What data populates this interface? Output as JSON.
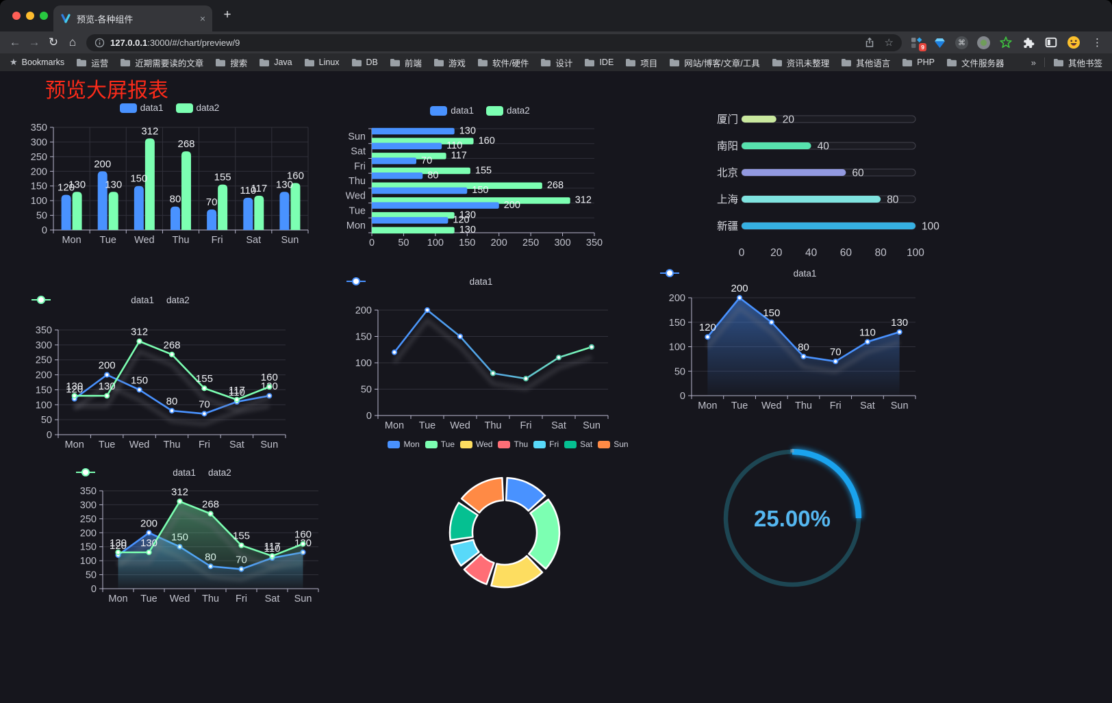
{
  "browser": {
    "tab": {
      "title": "预览-各种组件"
    },
    "address": {
      "url_host": "127.0.0.1",
      "url_rest": ":3000/#/chart/preview/9"
    },
    "extensions_badge": "9",
    "icons": {
      "close": "×",
      "new_tab": "+",
      "back": "←",
      "forward": "→",
      "reload": "↻",
      "home": "⌂",
      "star_outline": "☆",
      "bookmarks_star": "★",
      "overflow": "»",
      "menu": "⋮",
      "command": "⌘"
    },
    "bookmarks": {
      "label": "Bookmarks",
      "items": [
        "运营",
        "近期需要读的文章",
        "搜索",
        "Java",
        "Linux",
        "DB",
        "前端",
        "游戏",
        "软件/硬件",
        "设计",
        "IDE",
        "项目",
        "网站/博客/文章/工具",
        "资讯未整理",
        "其他语言",
        "PHP",
        "文件服务器"
      ],
      "overflow_icon": "»",
      "other_label": "其他书签"
    }
  },
  "page": {
    "title": "预览大屏报表",
    "title_color": "#fb2b1a",
    "background": "#16161d"
  },
  "palette": {
    "data1": "#4992ff",
    "data2": "#7cffb2"
  },
  "chart_data": [
    {
      "id": "grouped-bar",
      "type": "bar",
      "categories": [
        "Mon",
        "Tue",
        "Wed",
        "Thu",
        "Fri",
        "Sat",
        "Sun"
      ],
      "series": [
        {
          "name": "data1",
          "color": "#4992ff",
          "values": [
            120,
            200,
            150,
            80,
            70,
            110,
            130
          ]
        },
        {
          "name": "data2",
          "color": "#7cffb2",
          "values": [
            130,
            130,
            312,
            268,
            155,
            117,
            160
          ]
        }
      ],
      "ylim": [
        0,
        350
      ],
      "ystep": 50,
      "legend_position": "top",
      "grid": true,
      "point_labels": true
    },
    {
      "id": "horizontal-bar",
      "type": "bar",
      "orientation": "horizontal",
      "display_order": "Sun-top",
      "categories": [
        "Mon",
        "Tue",
        "Wed",
        "Thu",
        "Fri",
        "Sat",
        "Sun"
      ],
      "series": [
        {
          "name": "data1",
          "color": "#4992ff",
          "values": [
            120,
            200,
            150,
            80,
            70,
            110,
            130
          ]
        },
        {
          "name": "data2",
          "color": "#7cffb2",
          "values": [
            130,
            130,
            312,
            268,
            155,
            117,
            160
          ]
        }
      ],
      "xlim": [
        0,
        350
      ],
      "xstep": 50,
      "legend_position": "top",
      "point_labels": true
    },
    {
      "id": "progress-bars",
      "type": "bar",
      "orientation": "horizontal",
      "style": "progress",
      "items": [
        {
          "label": "厦门",
          "value": 20,
          "color": "#c9e89e"
        },
        {
          "label": "南阳",
          "value": 40,
          "color": "#57e2ae"
        },
        {
          "label": "北京",
          "value": 60,
          "color": "#9299e0"
        },
        {
          "label": "上海",
          "value": 80,
          "color": "#7fe3df"
        },
        {
          "label": "新疆",
          "value": 100,
          "color": "#36b0e2"
        }
      ],
      "xlim": [
        0,
        100
      ],
      "xticks": [
        0,
        20,
        40,
        60,
        80,
        100
      ]
    },
    {
      "id": "two-series-line",
      "type": "line",
      "categories": [
        "Mon",
        "Tue",
        "Wed",
        "Thu",
        "Fri",
        "Sat",
        "Sun"
      ],
      "series": [
        {
          "name": "data1",
          "color": "#4992ff",
          "values": [
            120,
            200,
            150,
            80,
            70,
            110,
            130
          ]
        },
        {
          "name": "data2",
          "color": "#7cffb2",
          "values": [
            130,
            130,
            312,
            268,
            155,
            117,
            160
          ]
        }
      ],
      "ylim": [
        0,
        350
      ],
      "ystep": 50,
      "legend_position": "top",
      "point_labels": true
    },
    {
      "id": "gradient-line",
      "type": "line",
      "categories": [
        "Mon",
        "Tue",
        "Wed",
        "Thu",
        "Fri",
        "Sat",
        "Sun"
      ],
      "series": [
        {
          "name": "data1",
          "gradient": [
            "#4992ff",
            "#7cffb2"
          ],
          "values": [
            120,
            200,
            150,
            80,
            70,
            110,
            130
          ]
        }
      ],
      "ylim": [
        0,
        200
      ],
      "ystep": 50,
      "legend_position": "top",
      "point_labels": false,
      "shadow": true
    },
    {
      "id": "single-area",
      "type": "area",
      "categories": [
        "Mon",
        "Tue",
        "Wed",
        "Thu",
        "Fri",
        "Sat",
        "Sun"
      ],
      "series": [
        {
          "name": "data1",
          "color": "#4992ff",
          "values": [
            120,
            200,
            150,
            80,
            70,
            110,
            130
          ]
        }
      ],
      "ylim": [
        0,
        200
      ],
      "ystep": 50,
      "legend_position": "top",
      "point_labels": true
    },
    {
      "id": "two-series-area",
      "type": "area",
      "categories": [
        "Mon",
        "Tue",
        "Wed",
        "Thu",
        "Fri",
        "Sat",
        "Sun"
      ],
      "series": [
        {
          "name": "data1",
          "color": "#4992ff",
          "values": [
            120,
            200,
            150,
            80,
            70,
            110,
            130
          ]
        },
        {
          "name": "data2",
          "color": "#7cffb2",
          "values": [
            130,
            130,
            312,
            268,
            155,
            117,
            160
          ]
        }
      ],
      "ylim": [
        0,
        350
      ],
      "ystep": 50,
      "legend_position": "top",
      "point_labels": true
    },
    {
      "id": "donut",
      "type": "pie",
      "donut": true,
      "categories": [
        "Mon",
        "Tue",
        "Wed",
        "Thu",
        "Fri",
        "Sat",
        "Sun"
      ],
      "values": [
        120,
        200,
        150,
        80,
        70,
        110,
        130
      ],
      "colors": [
        "#4992ff",
        "#7cffb2",
        "#fddd60",
        "#ff6e76",
        "#58d9f9",
        "#05c091",
        "#ff8a45"
      ],
      "legend_position": "top"
    },
    {
      "id": "gauge",
      "type": "gauge",
      "percent": 25,
      "value_label": "25.00%",
      "progress_color": "#1aa3ee",
      "track_color": "#1d4653",
      "text_color": "#55b7f0"
    }
  ]
}
